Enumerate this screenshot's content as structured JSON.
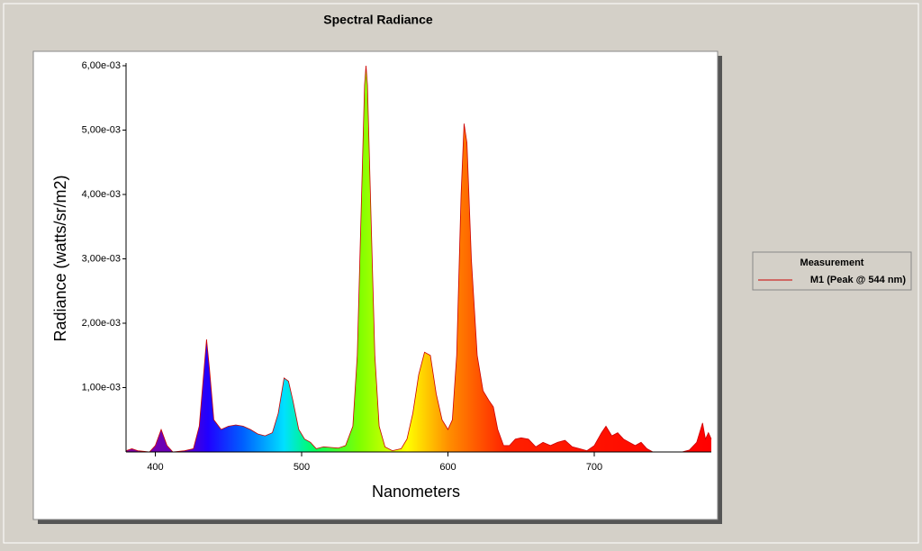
{
  "chart_data": {
    "type": "area",
    "title": "Spectral Radiance",
    "x_label": "Nanometers",
    "y_label": "Radiance (watts/sr/m2)",
    "legend_title": "Measurement",
    "series": [
      {
        "name": "M1 (Peak @ 544 nm)",
        "color": "#cc0000",
        "x": [
          380,
          384,
          388,
          392,
          396,
          400,
          404,
          408,
          412,
          420,
          426,
          430,
          433,
          435,
          437,
          440,
          445,
          450,
          455,
          460,
          465,
          470,
          475,
          480,
          484,
          488,
          491,
          494,
          498,
          502,
          506,
          510,
          515,
          520,
          525,
          530,
          535,
          538,
          541,
          543,
          544,
          545,
          547,
          550,
          553,
          557,
          562,
          568,
          572,
          576,
          580,
          584,
          588,
          592,
          596,
          600,
          603,
          606,
          609,
          611,
          613,
          616,
          620,
          624,
          628,
          631,
          634,
          638,
          642,
          646,
          650,
          655,
          660,
          665,
          670,
          675,
          680,
          685,
          690,
          695,
          700,
          705,
          708,
          712,
          716,
          720,
          724,
          728,
          732,
          736,
          740,
          750,
          760,
          765,
          770,
          774,
          776,
          778,
          780
        ],
        "values": [
          2e-05,
          5e-05,
          2e-05,
          1e-05,
          0,
          0.0001,
          0.00035,
          0.0001,
          0,
          2e-05,
          5e-05,
          0.0004,
          0.0012,
          0.00175,
          0.0013,
          0.0005,
          0.00035,
          0.0004,
          0.00042,
          0.0004,
          0.00035,
          0.00028,
          0.00025,
          0.0003,
          0.0006,
          0.00115,
          0.0011,
          0.0008,
          0.00035,
          0.0002,
          0.00015,
          5e-05,
          8e-05,
          7e-05,
          6e-05,
          0.0001,
          0.0004,
          0.0015,
          0.004,
          0.0057,
          0.006,
          0.0057,
          0.004,
          0.0015,
          0.0004,
          8e-05,
          2e-05,
          5e-05,
          0.0002,
          0.0006,
          0.0012,
          0.00155,
          0.0015,
          0.0009,
          0.0005,
          0.00035,
          0.0005,
          0.0015,
          0.004,
          0.0051,
          0.0048,
          0.003,
          0.0015,
          0.00095,
          0.0008,
          0.0007,
          0.00035,
          0.0001,
          0.0001,
          0.0002,
          0.00022,
          0.0002,
          8e-05,
          0.00015,
          0.0001,
          0.00015,
          0.00018,
          8e-05,
          5e-05,
          2e-05,
          0.0001,
          0.0003,
          0.0004,
          0.00025,
          0.0003,
          0.0002,
          0.00015,
          0.0001,
          0.00015,
          5e-05,
          0,
          0,
          0,
          3e-05,
          0.00015,
          0.00045,
          0.0002,
          0.0003,
          0.0002
        ]
      }
    ],
    "xlim": [
      380,
      780
    ],
    "xticks": [
      400,
      500,
      600,
      700
    ],
    "ylim": [
      0,
      0.006
    ],
    "yticks": [
      {
        "value": 0.001,
        "label": "1,00e-03"
      },
      {
        "value": 0.002,
        "label": "2,00e-03"
      },
      {
        "value": 0.003,
        "label": "3,00e-03"
      },
      {
        "value": 0.004,
        "label": "4,00e-03"
      },
      {
        "value": 0.005,
        "label": "5,00e-03"
      },
      {
        "value": 0.006,
        "label": "6,00e-03"
      }
    ]
  }
}
